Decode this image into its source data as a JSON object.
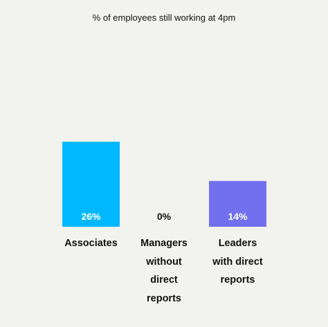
{
  "chart_data": {
    "type": "bar",
    "title": "% of employees still working at 4pm",
    "xlabel": "",
    "ylabel": "",
    "categories": [
      [
        "Associates"
      ],
      [
        "Managers",
        "without",
        "direct",
        "reports"
      ],
      [
        "Leaders",
        "with direct",
        "reports"
      ]
    ],
    "values": [
      26,
      0,
      14
    ],
    "value_labels": [
      "26%",
      "0%",
      "14%"
    ],
    "colors": [
      "#00b8ff",
      "#7b75ee",
      "#7270ee"
    ],
    "ylim": [
      0,
      30
    ],
    "grid": false,
    "legend": "none"
  }
}
